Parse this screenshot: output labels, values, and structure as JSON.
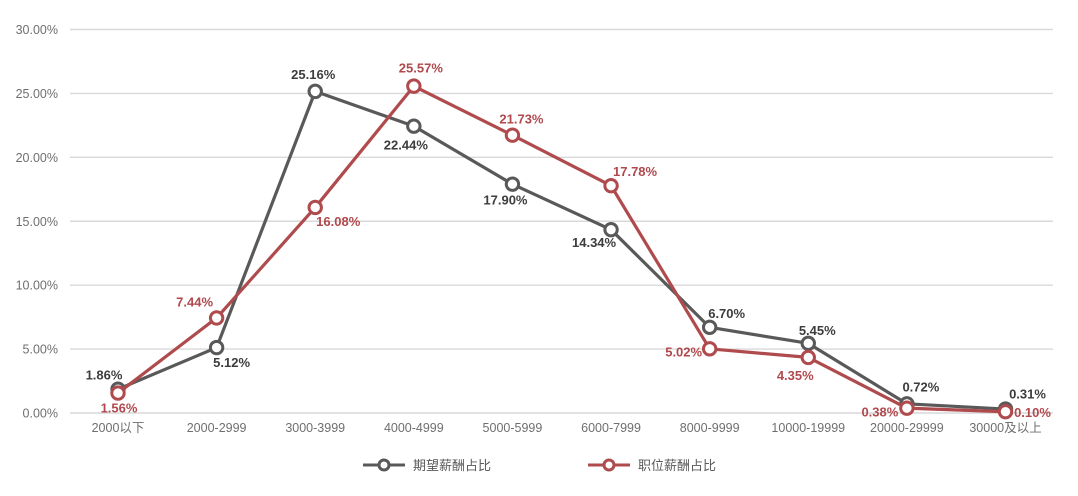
{
  "chart_data": {
    "type": "line",
    "categories": [
      "2000以下",
      "2000-2999",
      "3000-3999",
      "4000-4999",
      "5000-5999",
      "6000-7999",
      "8000-9999",
      "10000-19999",
      "20000-29999",
      "30000及以上"
    ],
    "series": [
      {
        "name": "期望薪酬占比",
        "color": "#595959",
        "label_color": "#3d3d3d",
        "values": [
          1.86,
          5.12,
          25.16,
          22.44,
          17.9,
          14.34,
          6.7,
          5.45,
          0.72,
          0.31
        ],
        "labels": [
          "1.86%",
          "5.12%",
          "25.16%",
          "22.44%",
          "17.90%",
          "14.34%",
          "6.70%",
          "5.45%",
          "0.72%",
          "0.31%"
        ],
        "label_offsets": [
          [
            -14,
            -14
          ],
          [
            15,
            15
          ],
          [
            -2,
            -17
          ],
          [
            -8,
            19
          ],
          [
            -7,
            16
          ],
          [
            -17,
            13
          ],
          [
            17,
            -14
          ],
          [
            9,
            -13
          ],
          [
            14,
            -17
          ],
          [
            22,
            -15
          ]
        ]
      },
      {
        "name": "职位薪酬占比",
        "color": "#b04b4d",
        "label_color": "#b0494d",
        "values": [
          1.56,
          7.44,
          16.08,
          25.57,
          21.73,
          17.78,
          5.02,
          4.35,
          0.38,
          0.1
        ],
        "labels": [
          "1.56%",
          "7.44%",
          "16.08%",
          "25.57%",
          "21.73%",
          "17.78%",
          "5.02%",
          "4.35%",
          "0.38%",
          "0.10%"
        ],
        "label_offsets": [
          [
            1,
            15
          ],
          [
            -22,
            -16
          ],
          [
            23,
            14
          ],
          [
            7,
            -18
          ],
          [
            9,
            -16
          ],
          [
            24,
            -14
          ],
          [
            -26,
            3
          ],
          [
            -13,
            18
          ],
          [
            -27,
            4
          ],
          [
            27,
            1
          ]
        ]
      }
    ],
    "y_ticks": [
      "0.00%",
      "5.00%",
      "10.00%",
      "15.00%",
      "20.00%",
      "25.00%",
      "30.00%"
    ],
    "ylim": [
      0,
      30
    ],
    "xlabel": "",
    "ylabel": "",
    "grid": true,
    "legend_position": "bottom"
  },
  "colors": {
    "background": "#ffffff",
    "gridline": "#d9d9d9",
    "axis_text": "#6f6f6f",
    "series_expected": "#595959",
    "series_position": "#b04b4d"
  }
}
